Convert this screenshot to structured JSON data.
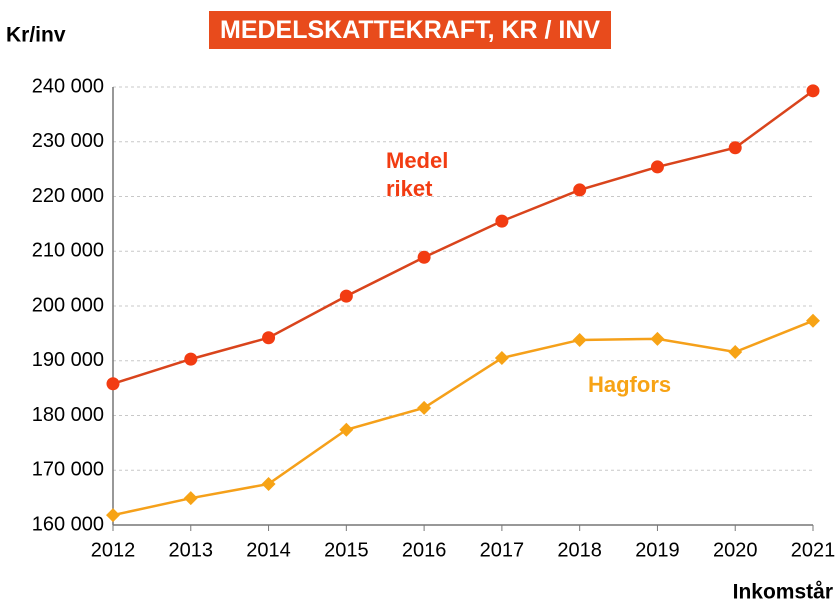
{
  "chart_data": {
    "type": "line",
    "title": "MEDELSKATTEKRAFT, KR / INV",
    "y_label": "Kr/inv",
    "x_label": "Inkomstår",
    "x": [
      2012,
      2013,
      2014,
      2015,
      2016,
      2017,
      2018,
      2019,
      2020,
      2021
    ],
    "xlim": [
      2012,
      2021
    ],
    "xticks": [
      2012,
      2013,
      2014,
      2015,
      2016,
      2017,
      2018,
      2019,
      2020,
      2021
    ],
    "ylim": [
      160000,
      240000
    ],
    "yticks": [
      {
        "value": 160000,
        "label": "160 000"
      },
      {
        "value": 170000,
        "label": "170 000"
      },
      {
        "value": 180000,
        "label": "180 000"
      },
      {
        "value": 190000,
        "label": "190 000"
      },
      {
        "value": 200000,
        "label": "200 000"
      },
      {
        "value": 210000,
        "label": "210 000"
      },
      {
        "value": 220000,
        "label": "220 000"
      },
      {
        "value": 230000,
        "label": "230 000"
      },
      {
        "value": 240000,
        "label": "240 000"
      }
    ],
    "grid": true,
    "series": [
      {
        "name": "Medel riket",
        "color": "#d9441c",
        "marker_color": "#f23c12",
        "marker": "circle",
        "values": [
          185800,
          190300,
          194200,
          201800,
          208900,
          215500,
          221200,
          225400,
          228900,
          239300
        ]
      },
      {
        "name": "Hagfors",
        "color": "#f5a01a",
        "marker_color": "#f7a315",
        "marker": "diamond",
        "values": [
          161800,
          164900,
          167500,
          177400,
          181400,
          190500,
          193800,
          194000,
          191600,
          197300
        ]
      }
    ]
  }
}
